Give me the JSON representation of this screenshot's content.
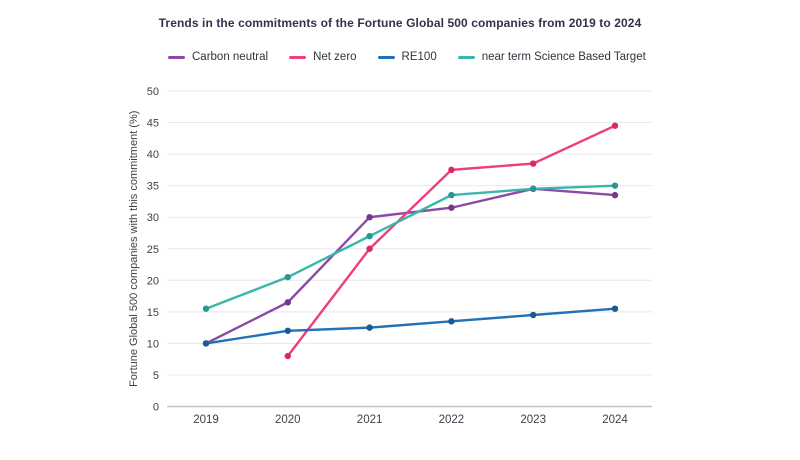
{
  "chart_data": {
    "type": "line",
    "title": "Trends in the commitments of the Fortune Global 500 companies from 2019 to 2024",
    "xlabel": "",
    "ylabel": "Fortune Global 500 companies with this commitment (%)",
    "x": [
      2019,
      2020,
      2021,
      2022,
      2023,
      2024
    ],
    "ylim": [
      0,
      50
    ],
    "yticks": [
      0,
      5,
      10,
      15,
      20,
      25,
      30,
      35,
      40,
      45,
      50
    ],
    "grid": true,
    "legend_position": "top",
    "series": [
      {
        "name": "Carbon neutral",
        "color": "#8c4aa5",
        "dot_color": "#73398c",
        "values": [
          10,
          16.5,
          30,
          31.5,
          34.5,
          33.5
        ]
      },
      {
        "name": "Net zero",
        "color": "#ee3e80",
        "dot_color": "#d6296c",
        "values": [
          null,
          8,
          25,
          37.5,
          38.5,
          44.5
        ]
      },
      {
        "name": "RE100",
        "color": "#2272b5",
        "dot_color": "#185a93",
        "values": [
          10,
          12,
          12.5,
          13.5,
          14.5,
          15.5
        ]
      },
      {
        "name": "near term Science Based Target",
        "color": "#3ab6ad",
        "dot_color": "#2a968f",
        "values": [
          15.5,
          20.5,
          27,
          33.5,
          34.5,
          35
        ]
      }
    ],
    "colors": {
      "background": "#ffffff",
      "title_text": "#32324a",
      "axis_text": "#40404c",
      "grid": "#e8e8ec",
      "axis_line": "#c2c2ca"
    }
  }
}
